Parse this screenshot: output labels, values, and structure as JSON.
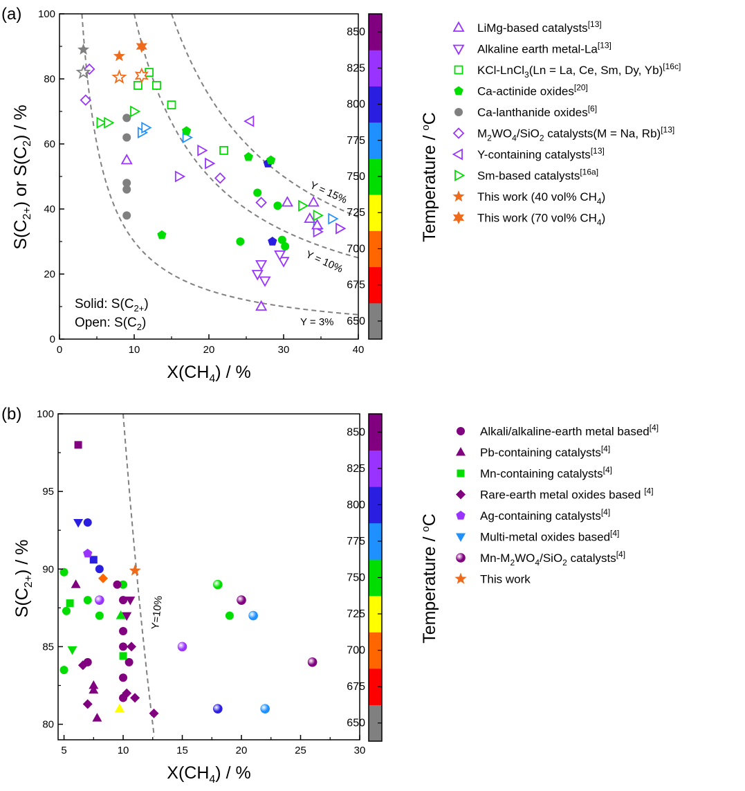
{
  "colors": {
    "t650": "#808080",
    "t675": "#ff0000",
    "t700": "#ff6600",
    "t725": "#ffff00",
    "t750": "#00dd00",
    "t775": "#1e90ff",
    "t800": "#2a1fe0",
    "t825": "#9933ff",
    "t850": "#800080",
    "this_work": "#ef6a1a",
    "guide": "#808080",
    "axis": "#000000"
  },
  "chart_data": [
    {
      "panel": "(a)",
      "type": "scatter",
      "xlabel": "X(CH4) / %",
      "ylabel": "S(C2+) or S(C2) / %",
      "xlim": [
        0,
        40
      ],
      "ylim": [
        0,
        100
      ],
      "x_ticks": [
        "0",
        "10",
        "20",
        "30",
        "40"
      ],
      "y_ticks": [
        "0",
        "20",
        "40",
        "60",
        "80",
        "100"
      ],
      "colorbar": {
        "label": "Temperature / oC",
        "ticks": [
          "650",
          "675",
          "700",
          "725",
          "750",
          "775",
          "800",
          "825",
          "850"
        ]
      },
      "annotations": {
        "solid": "Solid: S(C2+)",
        "open": "Open: S(C2)"
      },
      "guide_curves": [
        {
          "label": "Y = 3%",
          "yield": 3
        },
        {
          "label": "Y = 10%",
          "yield": 10
        },
        {
          "label": "Y = 15%",
          "yield": 15
        }
      ],
      "legend_placement": "right-outside",
      "series": [
        {
          "name": "LiMg-based catalysts[13]",
          "marker": "triangle-up",
          "fill": "open",
          "color": "t825",
          "points": [
            [
              9,
              55
            ],
            [
              30.5,
              42
            ],
            [
              34,
              42
            ],
            [
              33.5,
              37
            ],
            [
              34.5,
              35
            ],
            [
              27,
              10
            ]
          ]
        },
        {
          "name": "Alkaline earth metal-La[13]",
          "marker": "triangle-down",
          "fill": "open",
          "color": "t825",
          "points": [
            [
              27,
              23
            ],
            [
              26.5,
              20
            ],
            [
              27.5,
              18
            ],
            [
              30,
              24
            ],
            [
              29.5,
              26
            ]
          ]
        },
        {
          "name": "KCl-LnCl3(Ln = La, Ce, Sm, Dy, Yb)[16c]",
          "marker": "square",
          "fill": "open",
          "color": "t750",
          "points": [
            [
              10.5,
              78
            ],
            [
              12,
              82
            ],
            [
              13,
              78
            ],
            [
              15,
              72
            ],
            [
              22,
              58
            ]
          ]
        },
        {
          "name": "Ca-actinide oxides[20]",
          "marker": "pentagon",
          "fill": "solid",
          "color": "t750",
          "points": [
            [
              17,
              64
            ],
            [
              25.3,
              56
            ],
            [
              28.3,
              55
            ],
            [
              13.7,
              32
            ]
          ]
        },
        {
          "name": "Ca-lanthanide oxides[6]",
          "marker": "circle",
          "fill": "solid",
          "color": "t650",
          "points": [
            [
              9,
              68
            ],
            [
              9,
              62
            ],
            [
              9,
              48
            ],
            [
              9,
              46
            ],
            [
              9,
              38
            ]
          ]
        },
        {
          "name": "M2WO4/SiO2 catalysts(M = Na, Rb)[13]",
          "marker": "diamond",
          "fill": "open",
          "color": "t825",
          "points": [
            [
              4,
              83
            ],
            [
              3.5,
              73.5
            ],
            [
              21.5,
              49.5
            ],
            [
              27,
              42
            ]
          ]
        },
        {
          "name": "Y-containing catalysts[13]",
          "marker": "triangle-left",
          "fill": "open",
          "color": "t825",
          "points": [
            [
              25.5,
              67
            ]
          ]
        },
        {
          "name": "Sm-based catalysts[16a]",
          "marker": "triangle-right",
          "fill": "open",
          "color": "t750",
          "points": [
            [
              10,
              70
            ],
            [
              5.5,
              66.5
            ],
            [
              6.5,
              66.5
            ],
            [
              32.5,
              41
            ],
            [
              34.5,
              38
            ]
          ]
        },
        {
          "name": "This work (40 vol% CH4)",
          "marker": "star5",
          "fill": "both",
          "color": "this_work",
          "points": [
            [
              3.2,
              89
            ],
            [
              3.2,
              82
            ],
            [
              8,
              87
            ],
            [
              8,
              80.5
            ],
            [
              11,
              90
            ],
            [
              11,
              81
            ]
          ]
        },
        {
          "name": "This work (70 vol% CH4)",
          "marker": "star6",
          "fill": "both",
          "color": "this_work",
          "points": []
        }
      ],
      "extra_points": [
        {
          "marker": "triangle-right",
          "fill": "open",
          "color": "t775",
          "points": [
            [
              11,
              63.5
            ],
            [
              11.5,
              65
            ],
            [
              17,
              62
            ],
            [
              36.5,
              37
            ],
            [
              34.5,
              34
            ]
          ]
        },
        {
          "marker": "triangle-right",
          "fill": "open",
          "color": "t825",
          "points": [
            [
              19,
              58
            ],
            [
              20,
              54
            ],
            [
              16,
              50
            ],
            [
              37.5,
              34
            ],
            [
              34.5,
              33
            ]
          ]
        },
        {
          "marker": "circle",
          "fill": "solid",
          "color": "t750",
          "points": [
            [
              26.5,
              45
            ],
            [
              29.2,
              41
            ],
            [
              24.2,
              30
            ],
            [
              29.8,
              30.5
            ],
            [
              30.2,
              28.5
            ]
          ]
        },
        {
          "marker": "pentagon",
          "fill": "solid",
          "color": "t800",
          "points": [
            [
              27.9,
              54
            ],
            [
              28.5,
              30
            ]
          ]
        }
      ]
    },
    {
      "panel": "(b)",
      "type": "scatter",
      "xlabel": "X(CH4) / %",
      "ylabel": "S(C2+) / %",
      "xlim": [
        4.5,
        30
      ],
      "ylim": [
        79,
        100
      ],
      "x_ticks": [
        "5",
        "10",
        "15",
        "20",
        "25",
        "30"
      ],
      "y_ticks": [
        "80",
        "85",
        "90",
        "95",
        "100"
      ],
      "colorbar": {
        "label": "Temperature / oC",
        "ticks": [
          "650",
          "675",
          "700",
          "725",
          "750",
          "775",
          "800",
          "825",
          "850"
        ]
      },
      "guide_curves": [
        {
          "label": "Y=10%",
          "yield": 10
        }
      ],
      "legend_placement": "right-outside",
      "series": [
        {
          "name": "Alkali/alkaline-earth metal based[4]",
          "marker": "circle",
          "fill": "solid",
          "points": [
            [
              5,
              89.8,
              "t750"
            ],
            [
              5.2,
              87.3,
              "t750"
            ],
            [
              5,
              83.5,
              "t750"
            ],
            [
              7,
              88,
              "t750"
            ],
            [
              8,
              87,
              "t750"
            ],
            [
              10,
              89,
              "t750"
            ],
            [
              7,
              93,
              "t800"
            ],
            [
              8,
              90,
              "t800"
            ],
            [
              9.5,
              89,
              "t850"
            ],
            [
              10,
              86,
              "t850"
            ],
            [
              10,
              85,
              "t850"
            ],
            [
              10,
              83,
              "t850"
            ],
            [
              10,
              81.7,
              "t850"
            ],
            [
              7,
              84,
              "t850"
            ],
            [
              10.5,
              84,
              "t850"
            ],
            [
              10,
              88,
              "t850"
            ],
            [
              19,
              87,
              "t750"
            ]
          ]
        },
        {
          "name": "Pb-containing catalysts[4]",
          "marker": "triangle-up",
          "fill": "solid",
          "points": [
            [
              6,
              89,
              "t850"
            ],
            [
              7.5,
              82.5,
              "t850"
            ],
            [
              7.5,
              82.2,
              "t850"
            ],
            [
              7.8,
              80.4,
              "t850"
            ],
            [
              9.7,
              81,
              "t725"
            ],
            [
              9.8,
              87,
              "t750"
            ]
          ]
        },
        {
          "name": "Mn-containing catalysts[4]",
          "marker": "square",
          "fill": "solid",
          "points": [
            [
              6.2,
              98,
              "t850"
            ],
            [
              5.5,
              87.8,
              "t750"
            ],
            [
              10,
              84.4,
              "t750"
            ],
            [
              7.5,
              90.6,
              "t800"
            ]
          ]
        },
        {
          "name": "Rare-earth metal oxides based [4]",
          "marker": "diamond",
          "fill": "solid",
          "points": [
            [
              6.6,
              83.8,
              "t850"
            ],
            [
              7,
              81.3,
              "t850"
            ],
            [
              10.3,
              82,
              "t850"
            ],
            [
              11,
              81.7,
              "t850"
            ],
            [
              10.7,
              85,
              "t850"
            ],
            [
              12.6,
              80.7,
              "t850"
            ],
            [
              8.3,
              89.4,
              "t700"
            ]
          ]
        },
        {
          "name": "Ag-containing catalysts[4]",
          "marker": "pentagon",
          "fill": "solid",
          "points": [
            [
              7,
              91,
              "t825"
            ]
          ]
        },
        {
          "name": "Multi-metal oxides based[4]",
          "marker": "triangle-down",
          "fill": "solid",
          "points": [
            [
              6.2,
              93,
              "t800"
            ],
            [
              5.7,
              84.8,
              "t750"
            ],
            [
              10.3,
              87,
              "t850"
            ],
            [
              10.6,
              88,
              "t850"
            ]
          ]
        },
        {
          "name": "Mn-M2WO4/SiO2 catalysts[4]",
          "marker": "sphere",
          "fill": "solid",
          "points": [
            [
              8,
              88,
              "t825"
            ],
            [
              15,
              85,
              "t825"
            ],
            [
              18,
              89,
              "t750"
            ],
            [
              20,
              88,
              "t850"
            ],
            [
              21,
              87,
              "t775"
            ],
            [
              26,
              84,
              "t850"
            ],
            [
              18,
              81,
              "t800"
            ],
            [
              22,
              81,
              "t775"
            ]
          ]
        },
        {
          "name": "This work",
          "marker": "star5",
          "fill": "solid",
          "points": [
            [
              11,
              89.9,
              "this_work"
            ]
          ]
        }
      ]
    }
  ]
}
